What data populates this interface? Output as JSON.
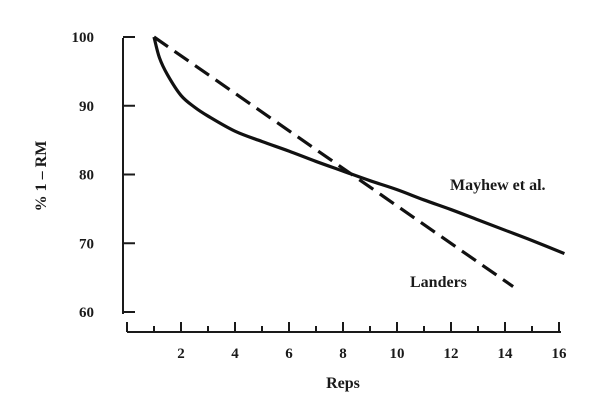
{
  "chart_data": {
    "type": "line",
    "title": "",
    "xlabel": "Reps",
    "ylabel": "% 1 – RM",
    "xlim": [
      0,
      16
    ],
    "ylim": [
      60,
      100
    ],
    "xticks": [
      2,
      4,
      6,
      8,
      10,
      12,
      14,
      16
    ],
    "yticks": [
      60,
      70,
      80,
      90,
      100
    ],
    "grid": false,
    "series": [
      {
        "name": "Mayhew et al.",
        "style": "solid",
        "x": [
          1,
          1.2,
          1.5,
          2,
          2.5,
          3,
          4,
          5,
          6,
          7,
          8,
          9,
          10,
          11,
          12,
          13,
          14,
          15,
          16.2
        ],
        "y": [
          100,
          97,
          94.5,
          91.5,
          89.8,
          88.5,
          86.3,
          84.8,
          83.4,
          81.9,
          80.5,
          79.1,
          77.8,
          76.3,
          74.9,
          73.4,
          71.9,
          70.4,
          68.5
        ]
      },
      {
        "name": "Landers",
        "style": "dashed",
        "x": [
          1,
          14.3
        ],
        "y": [
          100,
          63.7
        ]
      }
    ]
  }
}
